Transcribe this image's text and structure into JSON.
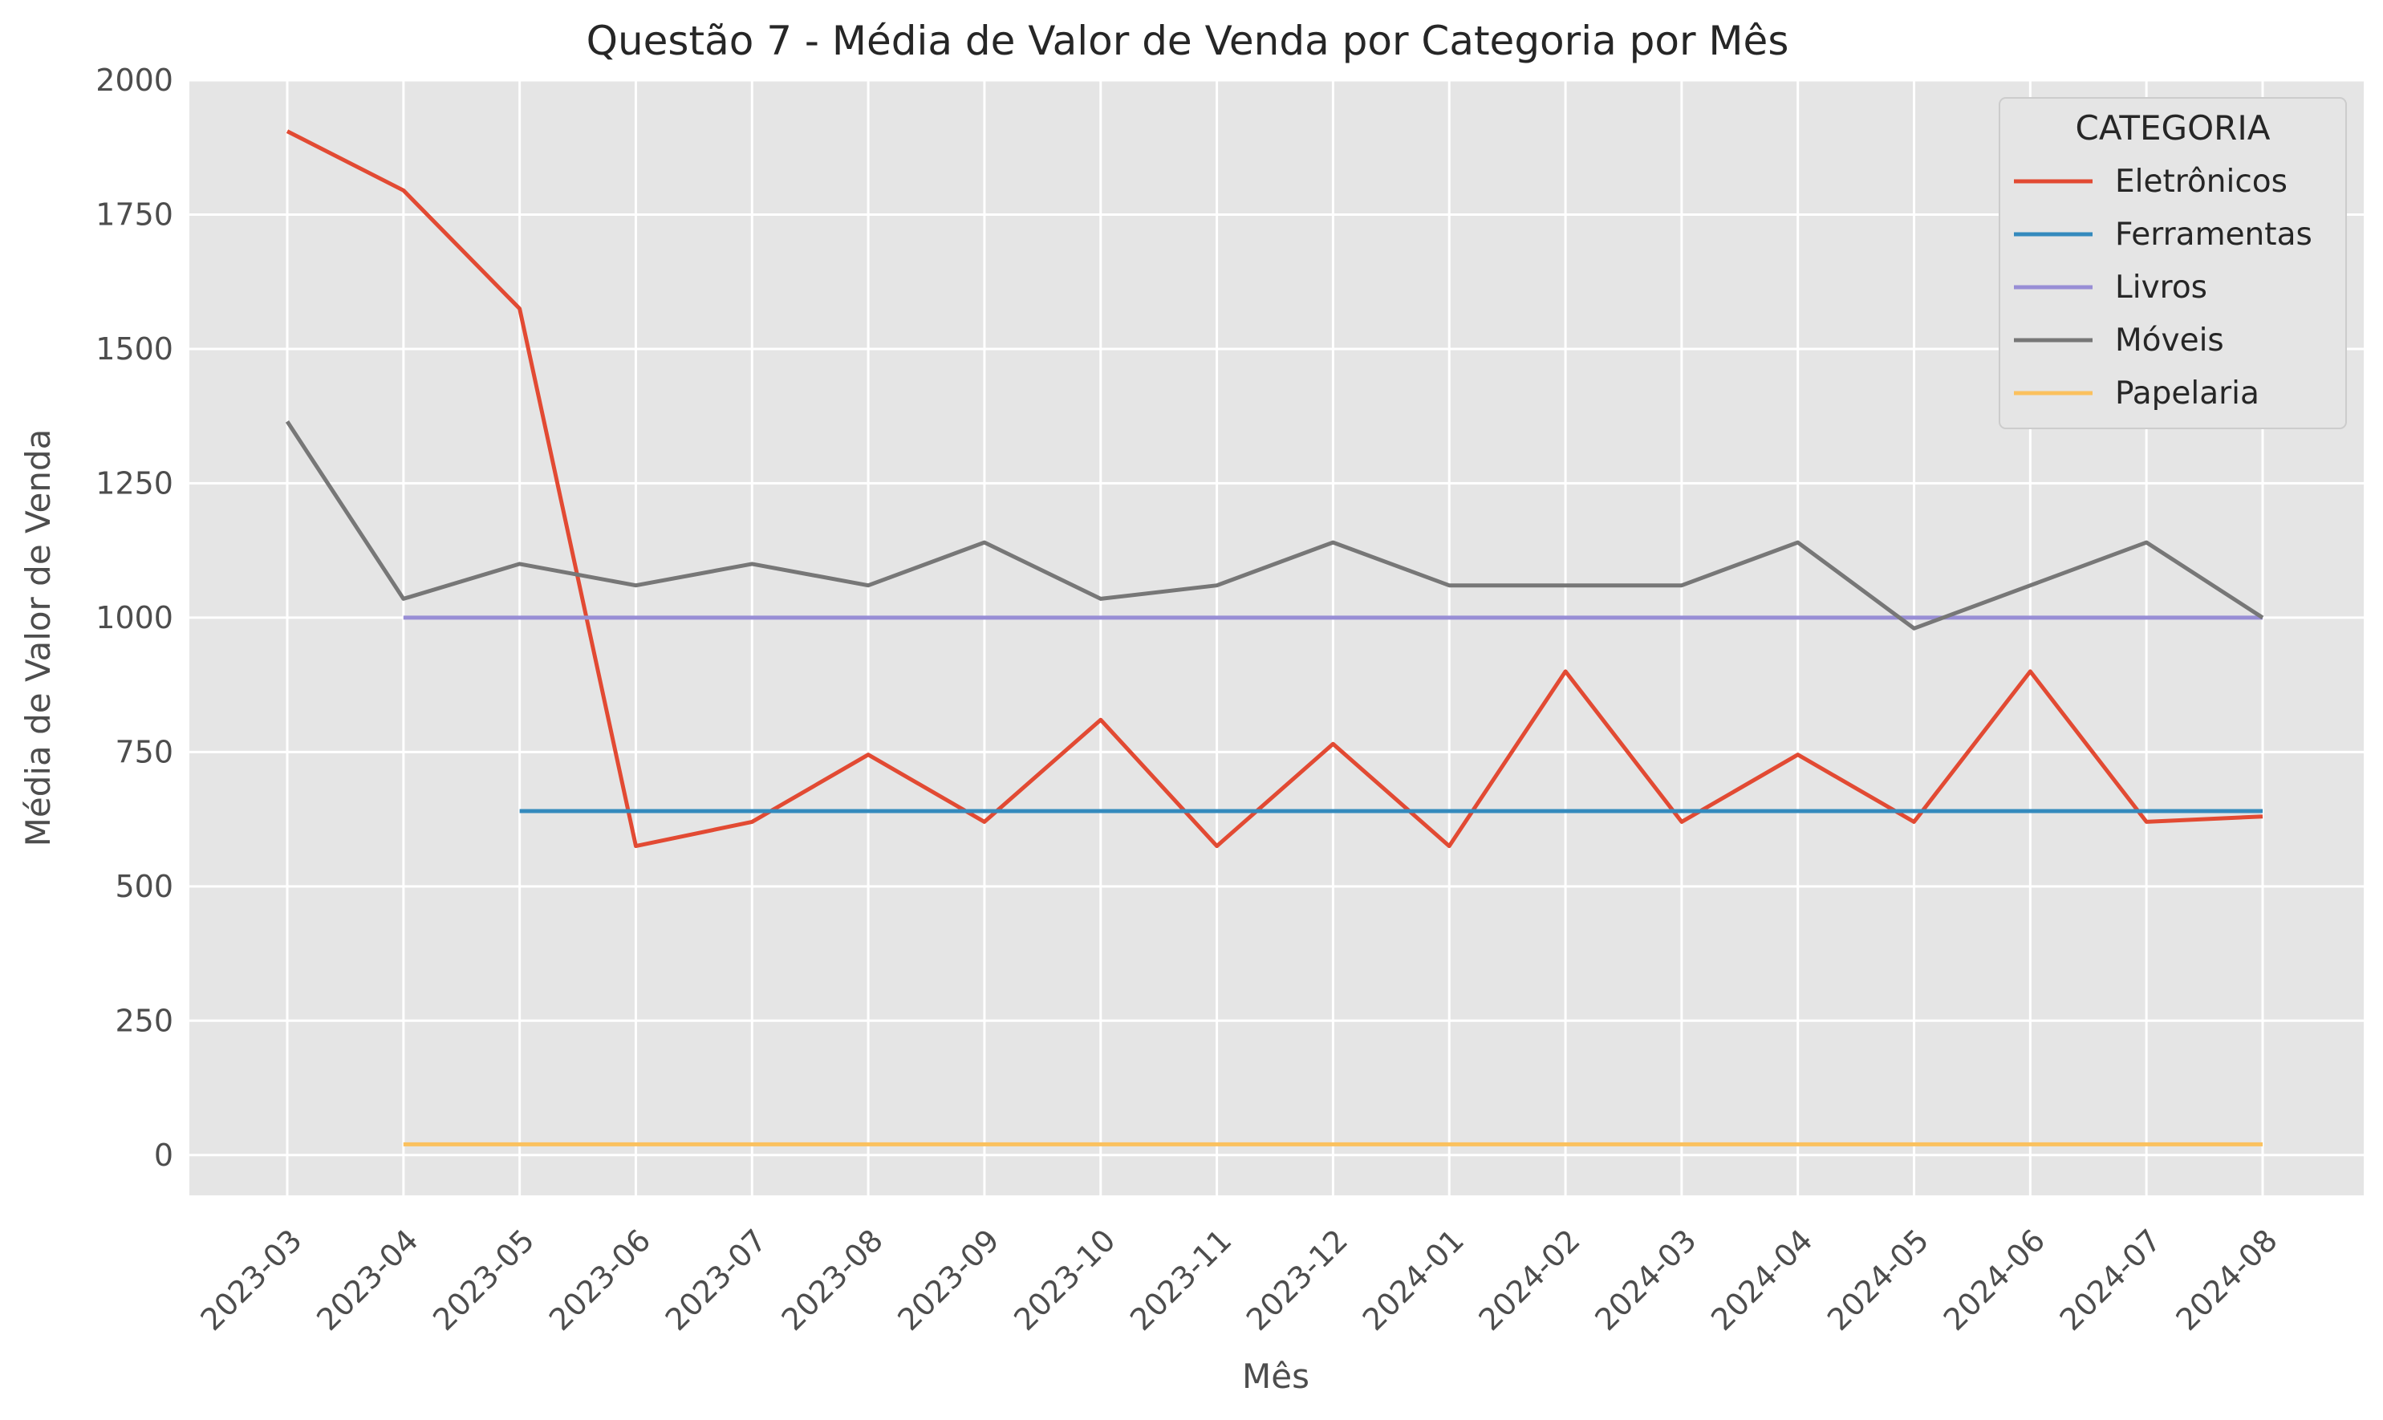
{
  "chart_data": {
    "type": "line",
    "title": "Questão 7 - Média de Valor de Venda por Categoria por Mês",
    "xlabel": "Mês",
    "ylabel": "Média de Valor de Venda",
    "ylim": [
      -75,
      2000
    ],
    "yticks": [
      0,
      250,
      500,
      750,
      1000,
      1250,
      1500,
      1750,
      2000
    ],
    "grid": true,
    "legend": {
      "title": "CATEGORIA",
      "position": "top-right"
    },
    "categories": [
      "2023-03",
      "2023-04",
      "2023-05",
      "2023-06",
      "2023-07",
      "2023-08",
      "2023-09",
      "2023-10",
      "2023-11",
      "2023-12",
      "2024-01",
      "2024-02",
      "2024-03",
      "2024-04",
      "2024-05",
      "2024-06",
      "2024-07",
      "2024-08"
    ],
    "series": [
      {
        "name": "Eletrônicos",
        "color": "#E24A33",
        "values": [
          1905,
          1795,
          1575,
          575,
          620,
          745,
          620,
          810,
          575,
          765,
          575,
          900,
          620,
          745,
          620,
          900,
          620,
          630
        ]
      },
      {
        "name": "Ferramentas",
        "color": "#348ABD",
        "values": [
          null,
          null,
          640,
          640,
          640,
          640,
          640,
          640,
          640,
          640,
          640,
          640,
          640,
          640,
          640,
          640,
          640,
          640
        ]
      },
      {
        "name": "Livros",
        "color": "#988ED5",
        "values": [
          null,
          1000,
          1000,
          1000,
          1000,
          1000,
          1000,
          1000,
          1000,
          1000,
          1000,
          1000,
          1000,
          1000,
          1000,
          1000,
          1000,
          1000
        ]
      },
      {
        "name": "Móveis",
        "color": "#777777",
        "values": [
          1365,
          1035,
          1100,
          1060,
          1100,
          1060,
          1140,
          1035,
          1060,
          1140,
          1060,
          1060,
          1060,
          1140,
          980,
          1060,
          1140,
          1000
        ]
      },
      {
        "name": "Papelaria",
        "color": "#FBC15E",
        "values": [
          null,
          20,
          20,
          20,
          20,
          20,
          20,
          20,
          20,
          20,
          20,
          20,
          20,
          20,
          20,
          20,
          20,
          20
        ]
      }
    ]
  }
}
